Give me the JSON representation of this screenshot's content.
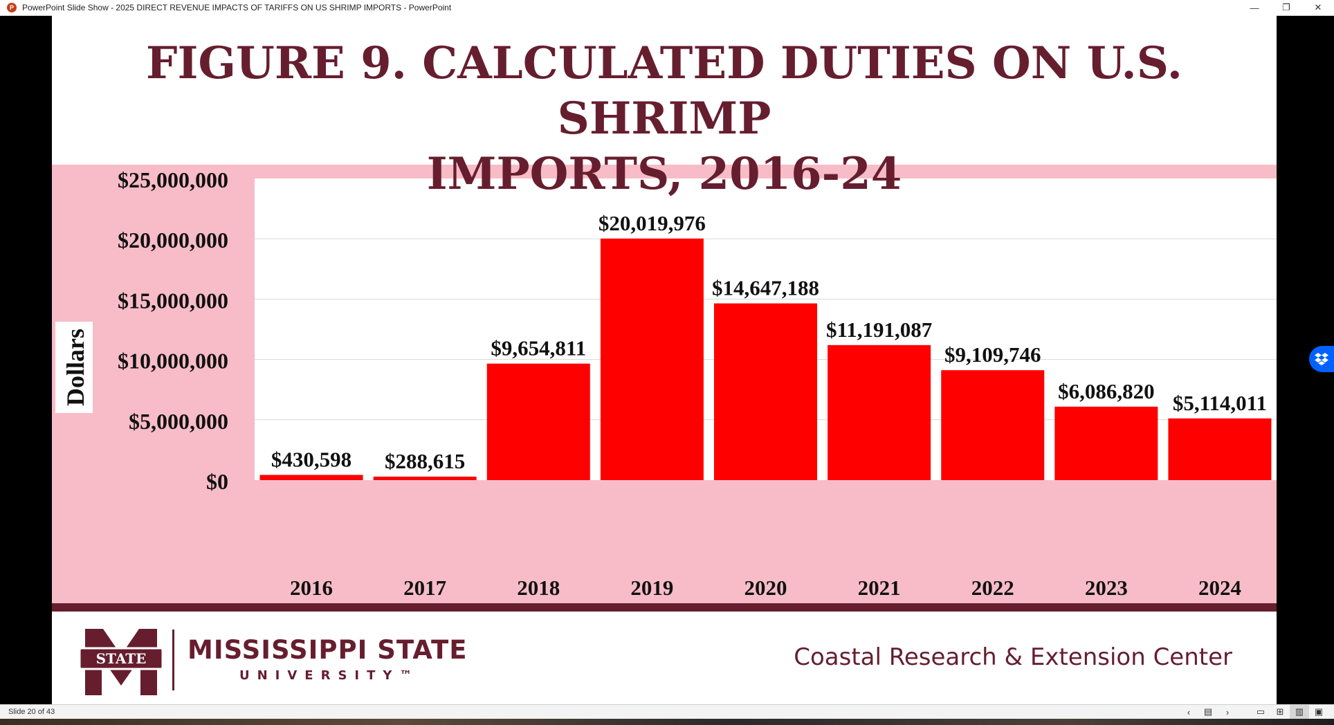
{
  "window": {
    "title": "PowerPoint Slide Show  -  2025 DIRECT REVENUE IMPACTS OF TARIFFS ON US SHRIMP IMPORTS - PowerPoint",
    "app_icon_letter": "P",
    "minimize_glyph": "—",
    "restore_glyph": "❐",
    "close_glyph": "✕"
  },
  "slide": {
    "title_line1": "FIGURE 9. CALCULATED DUTIES ON U.S. SHRIMP",
    "title_line2": "IMPORTS, 2016-24",
    "logo_text": "STATE",
    "university_name": "MISSISSIPPI STATE",
    "university_sub": "UNIVERSITY™",
    "center_name": "Coastal Research & Extension Center"
  },
  "colors": {
    "maroon": "#661e2f",
    "bar": "#ff0000",
    "plot_frame": "#f7bcc8",
    "plot_area": "#ffffff",
    "gridline": "#d9d9d9"
  },
  "chart_data": {
    "type": "bar",
    "title": "",
    "xlabel": "",
    "ylabel": "Dollars",
    "categories": [
      "2016",
      "2017",
      "2018",
      "2019",
      "2020",
      "2021",
      "2022",
      "2023",
      "2024"
    ],
    "values": [
      430598,
      288615,
      9654811,
      20019976,
      14647188,
      11191087,
      9109746,
      6086820,
      5114011
    ],
    "value_labels": [
      "$430,598",
      "$288,615",
      "$9,654,811",
      "$20,019,976",
      "$14,647,188",
      "$11,191,087",
      "$9,109,746",
      "$6,086,820",
      "$5,114,011"
    ],
    "ylim": [
      0,
      25000000
    ],
    "yticks": [
      0,
      5000000,
      10000000,
      15000000,
      20000000,
      25000000
    ],
    "ytick_labels": [
      "$0",
      "$5,000,000",
      "$10,000,000",
      "$15,000,000",
      "$20,000,000",
      "$25,000,000"
    ],
    "grid": true,
    "legend": "none"
  },
  "statusbar": {
    "slide_counter": "Slide 20 of 43",
    "prev_glyph": "‹",
    "menu_glyph": "▤",
    "next_glyph": "›",
    "normal_view_glyph": "▭",
    "sorter_view_glyph": "⊞",
    "reading_view_glyph": "▥",
    "slideshow_view_glyph": "▣"
  }
}
